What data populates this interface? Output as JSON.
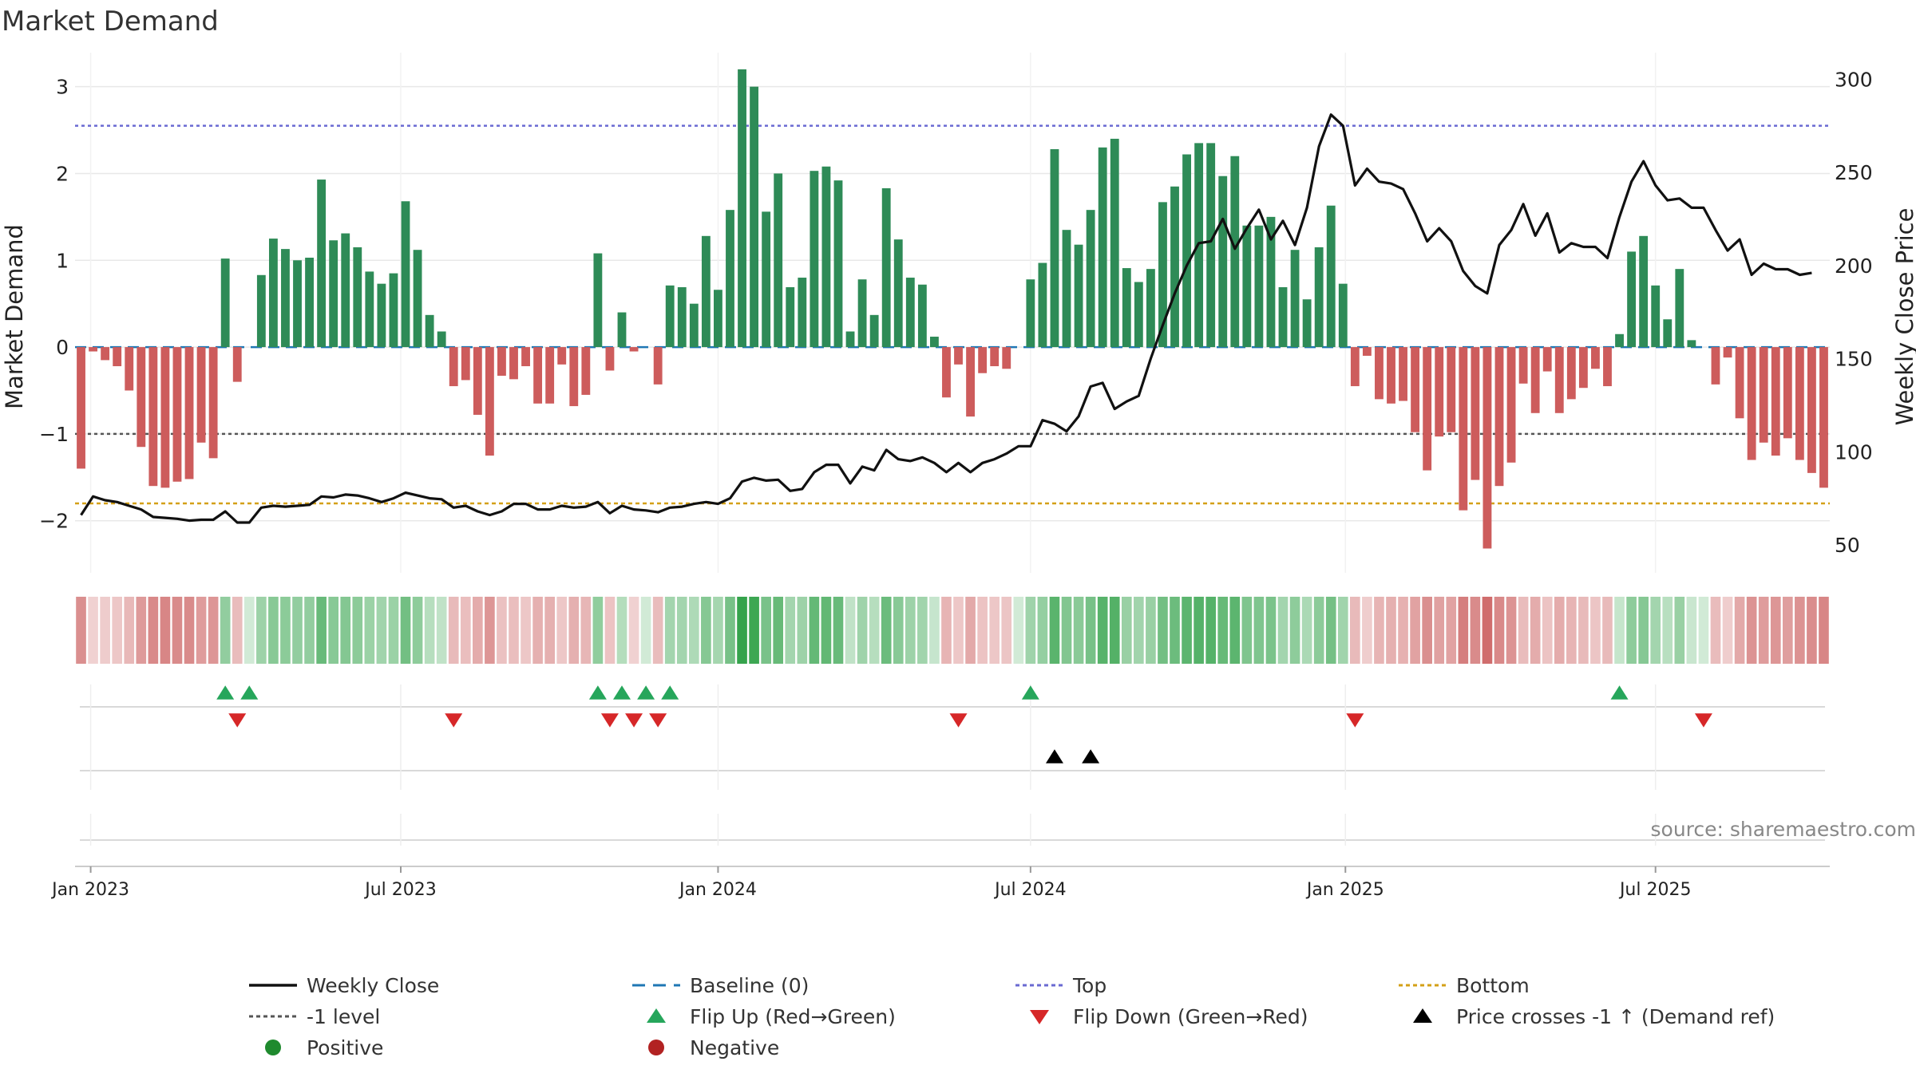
{
  "chart_data": {
    "type": "bar",
    "title": "Market Demand",
    "ylabel": "Market Demand",
    "y2label": "Weekly Close Price",
    "ylim": [
      -2.6,
      3.3
    ],
    "y2lim": [
      35,
      310
    ],
    "yticks": [
      3,
      2,
      1,
      0,
      -1,
      -2
    ],
    "ytick_labels": [
      "3",
      "2",
      "1",
      "0",
      "−1",
      "−2"
    ],
    "y2ticks": [
      300,
      250,
      200,
      150,
      100,
      50
    ],
    "y2tick_labels": [
      "300",
      "250",
      "200",
      "150",
      "100",
      "50"
    ],
    "x_start": "2023-01-02",
    "weeks": 146,
    "xticks": [
      {
        "label": "Jan 2023",
        "week": 0.8
      },
      {
        "label": "Jul 2023",
        "week": 26.6
      },
      {
        "label": "Jan 2024",
        "week": 53.0
      },
      {
        "label": "Jul 2024",
        "week": 79.0
      },
      {
        "label": "Jan 2025",
        "week": 105.2
      },
      {
        "label": "Jul 2025",
        "week": 131.0
      }
    ],
    "reference_lines": {
      "top": 2.55,
      "neg_one": -1.0,
      "bottom": -1.8,
      "baseline": 0
    },
    "series": [
      {
        "name": "Market Demand",
        "values": [
          -1.4,
          -0.05,
          -0.15,
          -0.22,
          -0.5,
          -1.15,
          -1.6,
          -1.62,
          -1.55,
          -1.52,
          -1.1,
          -1.28,
          1.02,
          -0.4,
          0,
          0.83,
          1.25,
          1.13,
          1.0,
          1.03,
          1.93,
          1.23,
          1.31,
          1.15,
          0.87,
          0.73,
          0.85,
          1.68,
          1.12,
          0.37,
          0.18,
          -0.45,
          -0.38,
          -0.78,
          -1.25,
          -0.33,
          -0.37,
          -0.22,
          -0.65,
          -0.65,
          -0.2,
          -0.68,
          -0.55,
          1.08,
          -0.27,
          0.4,
          -0.05,
          0,
          -0.43,
          0.71,
          0.69,
          0.5,
          1.28,
          0.66,
          1.58,
          3.2,
          3.0,
          1.56,
          2.0,
          0.69,
          0.8,
          2.03,
          2.08,
          1.92,
          0.18,
          0.78,
          0.37,
          1.83,
          1.24,
          0.8,
          0.72,
          0.12,
          -0.58,
          -0.2,
          -0.8,
          -0.3,
          -0.22,
          -0.25,
          0,
          0.78,
          0.97,
          2.28,
          1.35,
          1.18,
          1.58,
          2.3,
          2.4,
          0.91,
          0.75,
          0.9,
          1.67,
          1.85,
          2.22,
          2.35,
          2.35,
          1.97,
          2.2,
          1.4,
          1.4,
          1.5,
          0.69,
          1.12,
          0.55,
          1.15,
          1.63,
          0.73,
          -0.45,
          -0.1,
          -0.6,
          -0.65,
          -0.62,
          -0.98,
          -1.42,
          -1.03,
          -0.98,
          -1.88,
          -1.53,
          -2.32,
          -1.6,
          -1.33,
          -0.42,
          -0.76,
          -0.28,
          -0.76,
          -0.6,
          -0.47,
          -0.25,
          -0.45,
          0.15,
          1.1,
          1.28,
          0.71,
          0.32,
          0.9,
          0.08,
          0,
          -0.43,
          -0.12,
          -0.82,
          -1.3,
          -1.1,
          -1.25,
          -1.05,
          -1.3,
          -1.45,
          -1.62
        ]
      },
      {
        "name": "Weekly Close",
        "axis": "right",
        "values": [
          66,
          76,
          74,
          73,
          71,
          69,
          65,
          64.5,
          64,
          63,
          63.5,
          63.5,
          68,
          62,
          62,
          70,
          71,
          70.5,
          71,
          71.5,
          76,
          75.5,
          77,
          76.5,
          75,
          73,
          75,
          78,
          76.5,
          75,
          74.5,
          70,
          71,
          68,
          66,
          68,
          72,
          72,
          69,
          69,
          71,
          70,
          70.5,
          73,
          67,
          71,
          69,
          68.5,
          67.5,
          70,
          70.5,
          72,
          73,
          72,
          75,
          84,
          86,
          84.5,
          85,
          79,
          80,
          89,
          93,
          93,
          83,
          92,
          90,
          101,
          96,
          95,
          97,
          94,
          89,
          94,
          89,
          94,
          96,
          99,
          103,
          103,
          117,
          115,
          111,
          119,
          135,
          137,
          123,
          127,
          130,
          150,
          168,
          185,
          200,
          212,
          213,
          225,
          209,
          220,
          230,
          214,
          224,
          211,
          231,
          264,
          281,
          275,
          243,
          252,
          245,
          244,
          241,
          228,
          213,
          220,
          213,
          197,
          189,
          185,
          211,
          219,
          233,
          216,
          228,
          207,
          212,
          210,
          210,
          204,
          226,
          245,
          256,
          243,
          235,
          236,
          231,
          231,
          219,
          208,
          214,
          195,
          201,
          198,
          198,
          195,
          196
        ]
      }
    ],
    "flip_up_weeks": [
      12,
      14,
      43,
      45,
      47,
      49,
      79,
      128
    ],
    "flip_down_weeks": [
      13,
      31,
      44,
      46,
      48,
      73,
      106,
      135
    ],
    "price_cross_weeks": [
      81,
      84
    ],
    "colors": {
      "positive_bar": "#2e8b57",
      "negative_bar": "#cd5c5c",
      "price_line": "#111111",
      "baseline": "#1f77b4",
      "top_line": "#6a6ad2",
      "neg_one_line": "#555555",
      "bottom_line": "#d4a017",
      "flip_up": "#26a65b",
      "flip_down": "#d62728",
      "price_cross": "#000000",
      "grid": "#e8e8e8",
      "axis_text": "#222222",
      "source_text": "#888888"
    },
    "legend": [
      {
        "label": "Weekly Close",
        "marker": "solid-line"
      },
      {
        "label": "Baseline (0)",
        "marker": "blue-dash"
      },
      {
        "label": "Top",
        "marker": "purple-dot"
      },
      {
        "label": "Bottom",
        "marker": "gold-dot"
      },
      {
        "label": "-1 level",
        "marker": "gray-dot"
      },
      {
        "label": "Flip Up (Red→Green)",
        "marker": "green-up-triangle"
      },
      {
        "label": "Flip Down (Green→Red)",
        "marker": "red-down-triangle"
      },
      {
        "label": "Price crosses -1 ↑ (Demand ref)",
        "marker": "black-up-triangle"
      },
      {
        "label": "Positive",
        "marker": "green-circle"
      },
      {
        "label": "Negative",
        "marker": "red-circle"
      }
    ],
    "source": "source: sharemaestro.com"
  }
}
